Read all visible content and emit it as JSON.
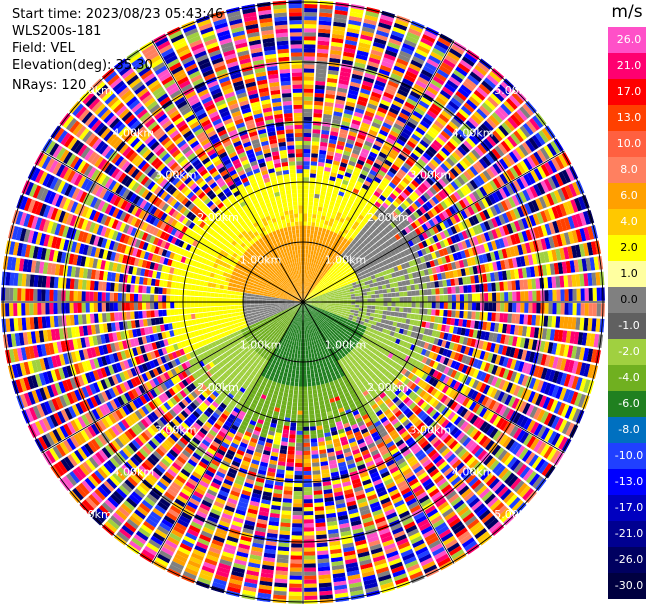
{
  "info": {
    "start_time": "Start time: 2023/08/23 05:43:46",
    "station": "WLS200s-181",
    "field": "Field: VEL",
    "elevation": "Elevation(deg): 35.30",
    "nrays": "NRays: 120"
  },
  "chart_data": {
    "type": "heatmap",
    "projection": "polar",
    "field": "VEL",
    "nrays": 120,
    "range_rings": [
      {
        "label": "1.00km"
      },
      {
        "label": "2.00km"
      },
      {
        "label": "3.00km"
      },
      {
        "label": "4.00km"
      },
      {
        "label": "5.00km"
      }
    ],
    "colorbar": {
      "unit": "m/s",
      "ticks": [
        "26.0",
        "21.0",
        "17.0",
        "13.0",
        "10.0",
        "8.0",
        "6.0",
        "4.0",
        "2.0",
        "1.0",
        "0.0",
        "-1.0",
        "-2.0",
        "-4.0",
        "-6.0",
        "-8.0",
        "-10.0",
        "-13.0",
        "-17.0",
        "-21.0",
        "-26.0",
        "-30.0"
      ],
      "colors": [
        "#ff50c8",
        "#ff0070",
        "#ff0000",
        "#ff4000",
        "#ff6040",
        "#ff8060",
        "#ffa000",
        "#ffc800",
        "#ffff00",
        "#ffffa0",
        "#808080",
        "#606060",
        "#a0d040",
        "#70b020",
        "#208020",
        "#0070c0",
        "#2040ff",
        "#0000ff",
        "#0000c0",
        "#000090",
        "#000060",
        "#000040"
      ],
      "dark_text_ticks": [
        "2.0",
        "1.0",
        "0.0"
      ]
    }
  }
}
